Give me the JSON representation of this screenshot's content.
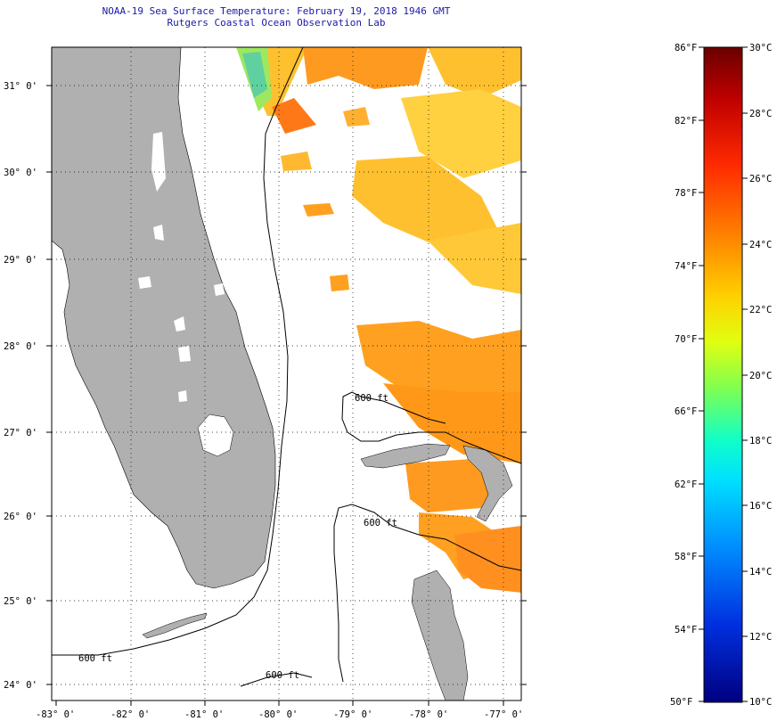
{
  "title": "NOAA-19 Sea Surface Temperature:  February 19, 2018 1946 GMT",
  "subtitle": "Rutgers Coastal Ocean Observation Lab",
  "map": {
    "lat_labels": [
      "31° 0'",
      "30° 0'",
      "29° 0'",
      "28° 0'",
      "27° 0'",
      "26° 0'",
      "25° 0'",
      "24° 0'"
    ],
    "lon_labels": [
      "-83° 0'",
      "-82° 0'",
      "-81° 0'",
      "-80° 0'",
      "-79° 0'",
      "-78° 0'",
      "-77° 0'"
    ],
    "contour_labels": [
      "600 ft",
      "600 ft",
      "600 ft",
      "600 ft"
    ],
    "land_color": "#b0b0b0",
    "ocean_color": "#ffffff"
  },
  "colorbar": {
    "fahrenheit_labels": [
      "86°F",
      "82°F",
      "78°F",
      "74°F",
      "70°F",
      "66°F",
      "62°F",
      "58°F",
      "54°F",
      "50°F"
    ],
    "celsius_labels": [
      "30°C",
      "28°C",
      "26°C",
      "24°C",
      "22°C",
      "20°C",
      "18°C",
      "16°C",
      "14°C",
      "12°C",
      "10°C"
    ],
    "colors": [
      "#7a0000",
      "#d00000",
      "#ff3000",
      "#ff8000",
      "#ffc000",
      "#e8ff00",
      "#80ff40",
      "#00ffd0",
      "#00a0ff",
      "#0040ff",
      "#000090"
    ]
  }
}
